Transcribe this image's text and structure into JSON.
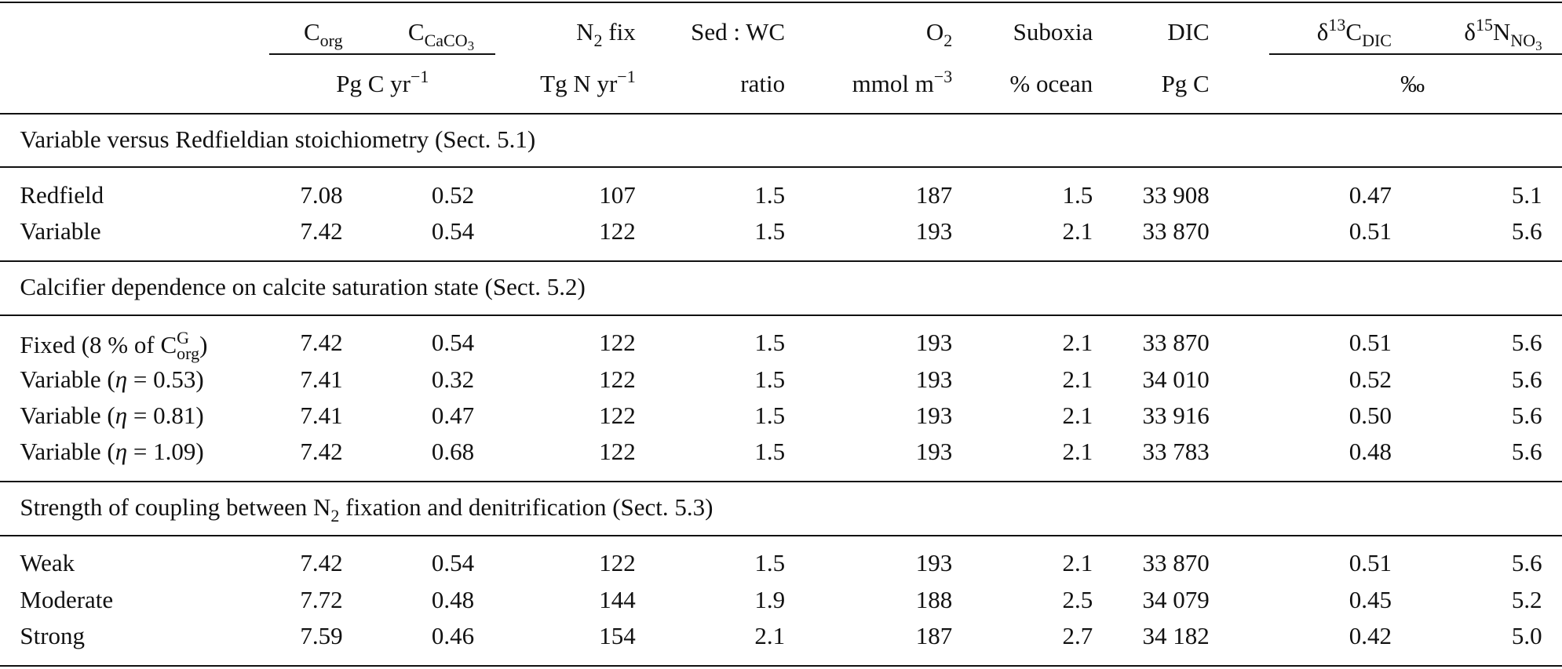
{
  "header": {
    "columns": [
      [
        {
          "text": "C"
        },
        {
          "text": "org",
          "pos": "sub"
        }
      ],
      [
        {
          "text": "C"
        },
        {
          "text": "CaCO",
          "pos": "sub"
        },
        {
          "text": "3",
          "pos": "sub2"
        }
      ],
      [
        {
          "text": "N"
        },
        {
          "text": "2",
          "pos": "sub"
        },
        {
          "text": " fix"
        }
      ],
      [
        {
          "text": "Sed : WC"
        }
      ],
      [
        {
          "text": "O"
        },
        {
          "text": "2",
          "pos": "sub"
        }
      ],
      [
        {
          "text": "Suboxia"
        }
      ],
      [
        {
          "text": "DIC"
        }
      ],
      [
        {
          "text": "δ"
        },
        {
          "text": "13",
          "pos": "sup"
        },
        {
          "text": "C"
        },
        {
          "text": "DIC",
          "pos": "sub"
        }
      ],
      [
        {
          "text": "δ"
        },
        {
          "text": "15",
          "pos": "sup"
        },
        {
          "text": "N"
        },
        {
          "text": "NO",
          "pos": "sub"
        },
        {
          "text": "3",
          "pos": "sub2"
        }
      ]
    ],
    "units": [
      [
        {
          "text": "Pg C yr"
        },
        {
          "text": "−1",
          "pos": "sup"
        }
      ],
      [
        {
          "text": "Tg N yr"
        },
        {
          "text": "−1",
          "pos": "sup"
        }
      ],
      [
        {
          "text": "ratio"
        }
      ],
      [
        {
          "text": "mmol m"
        },
        {
          "text": "−3",
          "pos": "sup"
        }
      ],
      [
        {
          "text": "% ocean"
        }
      ],
      [
        {
          "text": "Pg C"
        }
      ],
      [
        {
          "text": "‰"
        }
      ]
    ]
  },
  "sections": [
    {
      "title": [
        {
          "text": "Variable versus Redfieldian stoichiometry (Sect. 5.1)"
        }
      ],
      "rows": [
        {
          "label": [
            {
              "text": "Redfield"
            }
          ],
          "values": [
            "7.08",
            "0.52",
            "107",
            "1.5",
            "187",
            "1.5",
            "33 908",
            "0.47",
            "5.1"
          ]
        },
        {
          "label": [
            {
              "text": "Variable"
            }
          ],
          "values": [
            "7.42",
            "0.54",
            "122",
            "1.5",
            "193",
            "2.1",
            "33 870",
            "0.51",
            "5.6"
          ]
        }
      ]
    },
    {
      "title": [
        {
          "text": "Calcifier dependence on calcite saturation state (Sect. 5.2)"
        }
      ],
      "rows": [
        {
          "label": [
            {
              "text": "Fixed (8 % of C"
            },
            {
              "sup": "G",
              "sub": "org"
            },
            {
              "text": ")"
            }
          ],
          "values": [
            "7.42",
            "0.54",
            "122",
            "1.5",
            "193",
            "2.1",
            "33 870",
            "0.51",
            "5.6"
          ]
        },
        {
          "label": [
            {
              "text": "Variable ("
            },
            {
              "text": "η",
              "pos": "it"
            },
            {
              "text": " = 0.53)"
            }
          ],
          "values": [
            "7.41",
            "0.32",
            "122",
            "1.5",
            "193",
            "2.1",
            "34 010",
            "0.52",
            "5.6"
          ]
        },
        {
          "label": [
            {
              "text": "Variable ("
            },
            {
              "text": "η",
              "pos": "it"
            },
            {
              "text": " = 0.81)"
            }
          ],
          "values": [
            "7.41",
            "0.47",
            "122",
            "1.5",
            "193",
            "2.1",
            "33 916",
            "0.50",
            "5.6"
          ]
        },
        {
          "label": [
            {
              "text": "Variable ("
            },
            {
              "text": "η",
              "pos": "it"
            },
            {
              "text": " = 1.09)"
            }
          ],
          "values": [
            "7.42",
            "0.68",
            "122",
            "1.5",
            "193",
            "2.1",
            "33 783",
            "0.48",
            "5.6"
          ]
        }
      ]
    },
    {
      "title": [
        {
          "text": "Strength of coupling between N"
        },
        {
          "text": "2",
          "pos": "sub"
        },
        {
          "text": " fixation and denitrification (Sect. 5.3)"
        }
      ],
      "rows": [
        {
          "label": [
            {
              "text": "Weak"
            }
          ],
          "values": [
            "7.42",
            "0.54",
            "122",
            "1.5",
            "193",
            "2.1",
            "33 870",
            "0.51",
            "5.6"
          ]
        },
        {
          "label": [
            {
              "text": "Moderate"
            }
          ],
          "values": [
            "7.72",
            "0.48",
            "144",
            "1.9",
            "188",
            "2.5",
            "34 079",
            "0.45",
            "5.2"
          ]
        },
        {
          "label": [
            {
              "text": "Strong"
            }
          ],
          "values": [
            "7.59",
            "0.46",
            "154",
            "2.1",
            "187",
            "2.7",
            "34 182",
            "0.42",
            "5.0"
          ]
        }
      ]
    }
  ]
}
